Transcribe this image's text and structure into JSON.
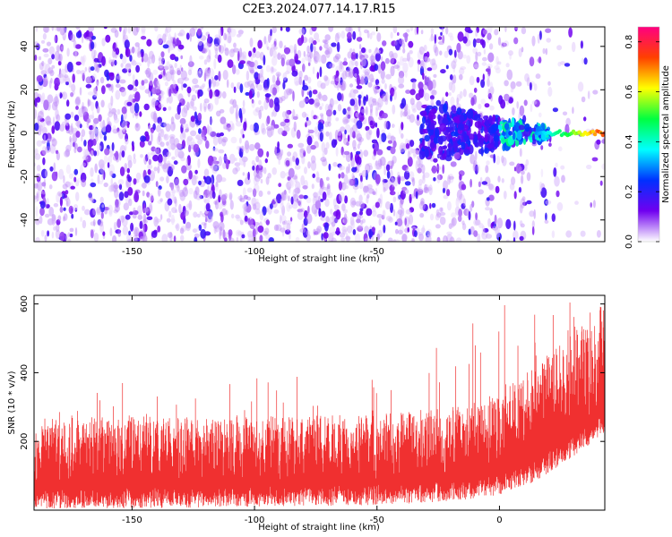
{
  "title": "C2E3.2024.077.14.17.R15",
  "chart_data": [
    {
      "type": "heatmap",
      "xlabel": "Height of straight line (km)",
      "ylabel": "Frequency (Hz)",
      "xlim": [
        -190,
        43
      ],
      "ylim": [
        -50,
        49
      ],
      "x_ticks": [
        -150,
        -100,
        -50,
        0
      ],
      "y_ticks": [
        -40,
        -20,
        0,
        20,
        40
      ],
      "colorbar": {
        "label": "Normalized spectral amplitude",
        "range": [
          0.0,
          0.86
        ],
        "ticks": [
          0.0,
          0.2,
          0.4,
          0.6,
          0.8
        ],
        "colormap": [
          "#ffffff",
          "#7000f0",
          "#0030ff",
          "#00ffff",
          "#00ff40",
          "#ffff00",
          "#ff4000",
          "#ff0080"
        ]
      },
      "features": {
        "noise_amplitude_range": [
          0.05,
          0.2
        ],
        "signal_line_frequency_hz": 0,
        "signal_start_km": 15,
        "signal_peak_amplitude": 0.8
      }
    },
    {
      "type": "line",
      "xlabel": "Height of straight line (km)",
      "ylabel": "SNR (10 * v/v)",
      "xlim": [
        -190,
        43
      ],
      "ylim": [
        0,
        625
      ],
      "x_ticks": [
        -150,
        -100,
        -50,
        0
      ],
      "y_ticks": [
        200,
        400,
        600
      ],
      "series_color": "#f03030",
      "envelope": {
        "x": [
          -190,
          -150,
          -100,
          -50,
          -20,
          0,
          15,
          30,
          43
        ],
        "baseline_low": [
          80,
          80,
          85,
          90,
          100,
          120,
          160,
          230,
          300
        ],
        "baseline_high": [
          270,
          275,
          270,
          280,
          300,
          340,
          420,
          520,
          600
        ],
        "spike_max": [
          360,
          405,
          460,
          390,
          500,
          610,
          620,
          625,
          600
        ]
      }
    }
  ]
}
